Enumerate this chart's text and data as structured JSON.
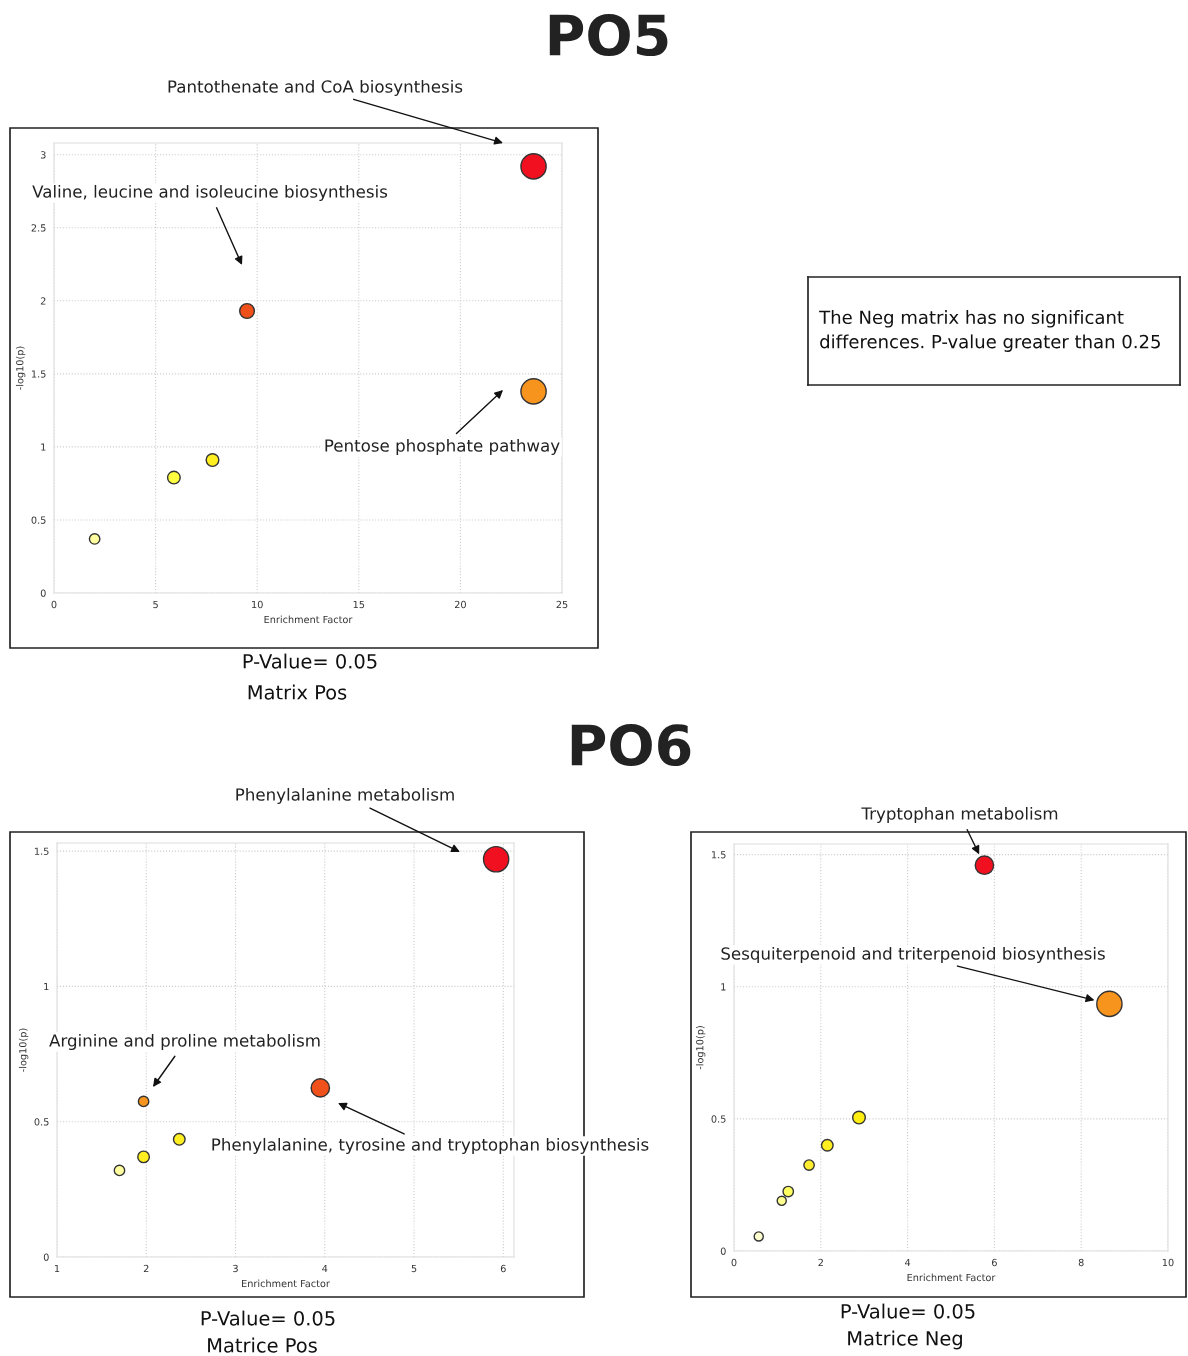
{
  "chart_data": [
    {
      "type": "bubble",
      "title": "PO5",
      "xlabel": "Enrichment Factor",
      "ylabel": "-log10(p)",
      "x": [
        2,
        5.9,
        7.8,
        9.5,
        23.6,
        23.6
      ],
      "values": [
        0.37,
        0.79,
        0.91,
        1.93,
        2.92,
        1.38
      ],
      "sizes": [
        0.17,
        0.25,
        0.25,
        0.34,
        1,
        1
      ],
      "colors": [
        "#ffffa0",
        "#ffff40",
        "#ffee20",
        "#f0501a",
        "#f01020",
        "#f7941d"
      ],
      "xlim": [
        0,
        25
      ],
      "ylim": [
        0,
        3.08
      ],
      "xticks": [
        0,
        5,
        10,
        15,
        20,
        25
      ],
      "yticks": [
        0,
        0.5,
        1,
        1.5,
        2,
        2.5,
        3
      ],
      "grid": true,
      "marker": "circle",
      "annotations": [
        "Pantothenate and CoA biosynthesis",
        "Valine, leucine and isoleucine biosynthesis",
        "Pentose phosphate pathway",
        "P-Value= 0.05",
        "Matrix Pos"
      ]
    },
    {
      "type": "other",
      "annotations": [
        "The Neg matrix has no significant differences. P-value greater than 0.25"
      ]
    },
    {
      "type": "other",
      "title": "PO6"
    },
    {
      "type": "bubble",
      "xlabel": "Enrichment Factor",
      "ylabel": "-log10(p)",
      "x": [
        1.7,
        1.97,
        1.97,
        2.37,
        3.95,
        5.92
      ],
      "values": [
        0.32,
        0.37,
        0.575,
        0.435,
        0.625,
        1.47
      ],
      "sizes": [
        0.17,
        0.21,
        0.17,
        0.21,
        0.53,
        1
      ],
      "colors": [
        "#ffffa0",
        "#ffee20",
        "#f7941d",
        "#ffee20",
        "#f0501a",
        "#f01020"
      ],
      "xlim": [
        1,
        6.12
      ],
      "ylim": [
        0,
        1.53
      ],
      "xticks": [
        1,
        2,
        3,
        4,
        5,
        6
      ],
      "yticks": [
        0,
        0.5,
        1,
        1.5
      ],
      "grid": true,
      "marker": "circle",
      "annotations": [
        "Phenylalanine metabolism",
        "Arginine and proline metabolism",
        "Phenylalanine, tyrosine and tryptophan biosynthesis",
        "P-Value= 0.05",
        "Matrice Pos"
      ]
    },
    {
      "type": "bubble",
      "xlabel": "Enrichment Factor",
      "ylabel": "-log10(p)",
      "x": [
        0.57,
        1.1,
        1.25,
        1.73,
        2.15,
        2.88,
        5.77,
        8.65
      ],
      "values": [
        0.055,
        0.19,
        0.225,
        0.325,
        0.4,
        0.505,
        1.46,
        0.935
      ],
      "sizes": [
        0.13,
        0.13,
        0.17,
        0.17,
        0.21,
        0.25,
        0.53,
        1
      ],
      "colors": [
        "#ffffd0",
        "#ffff90",
        "#ffff60",
        "#ffee30",
        "#ffee20",
        "#ffee10",
        "#f01020",
        "#f7941d"
      ],
      "xlim": [
        0,
        10
      ],
      "ylim": [
        0,
        1.54
      ],
      "xticks": [
        0,
        2,
        4,
        6,
        8,
        10
      ],
      "yticks": [
        0,
        0.5,
        1,
        1.5
      ],
      "grid": true,
      "marker": "circle",
      "annotations": [
        {
          "text": "Tryptophan metabolism",
          "x": 5.77,
          "y": 1.46
        },
        {
          "text": "Sesquiterpenoid and triterpenoid biosynthesis",
          "x": 8.65,
          "y": 0.935
        },
        "P-Value= 0.05",
        "Matrice Neg"
      ]
    }
  ]
}
